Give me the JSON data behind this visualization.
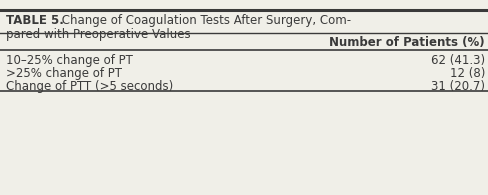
{
  "title_bold": "TABLE 5.",
  "title_line1_rest": " Change of Coagulation Tests After Surgery, Com-",
  "title_line2": "pared with Preoperative Values",
  "column_header": "Number of Patients (%)",
  "rows": [
    {
      "label": "10–25% change of PT",
      "value": "62 (41.3)"
    },
    {
      "label": ">25% change of PT",
      "value": "12 (8)"
    },
    {
      "label": "Change of PTT (>5 seconds)",
      "value": "31 (20.7)"
    }
  ],
  "bg_color": "#f0efe8",
  "text_color": "#3a3a3a",
  "line_color": "#3a3a3a",
  "font_size": 8.5,
  "header_font_size": 8.5,
  "title_font_size": 8.5
}
